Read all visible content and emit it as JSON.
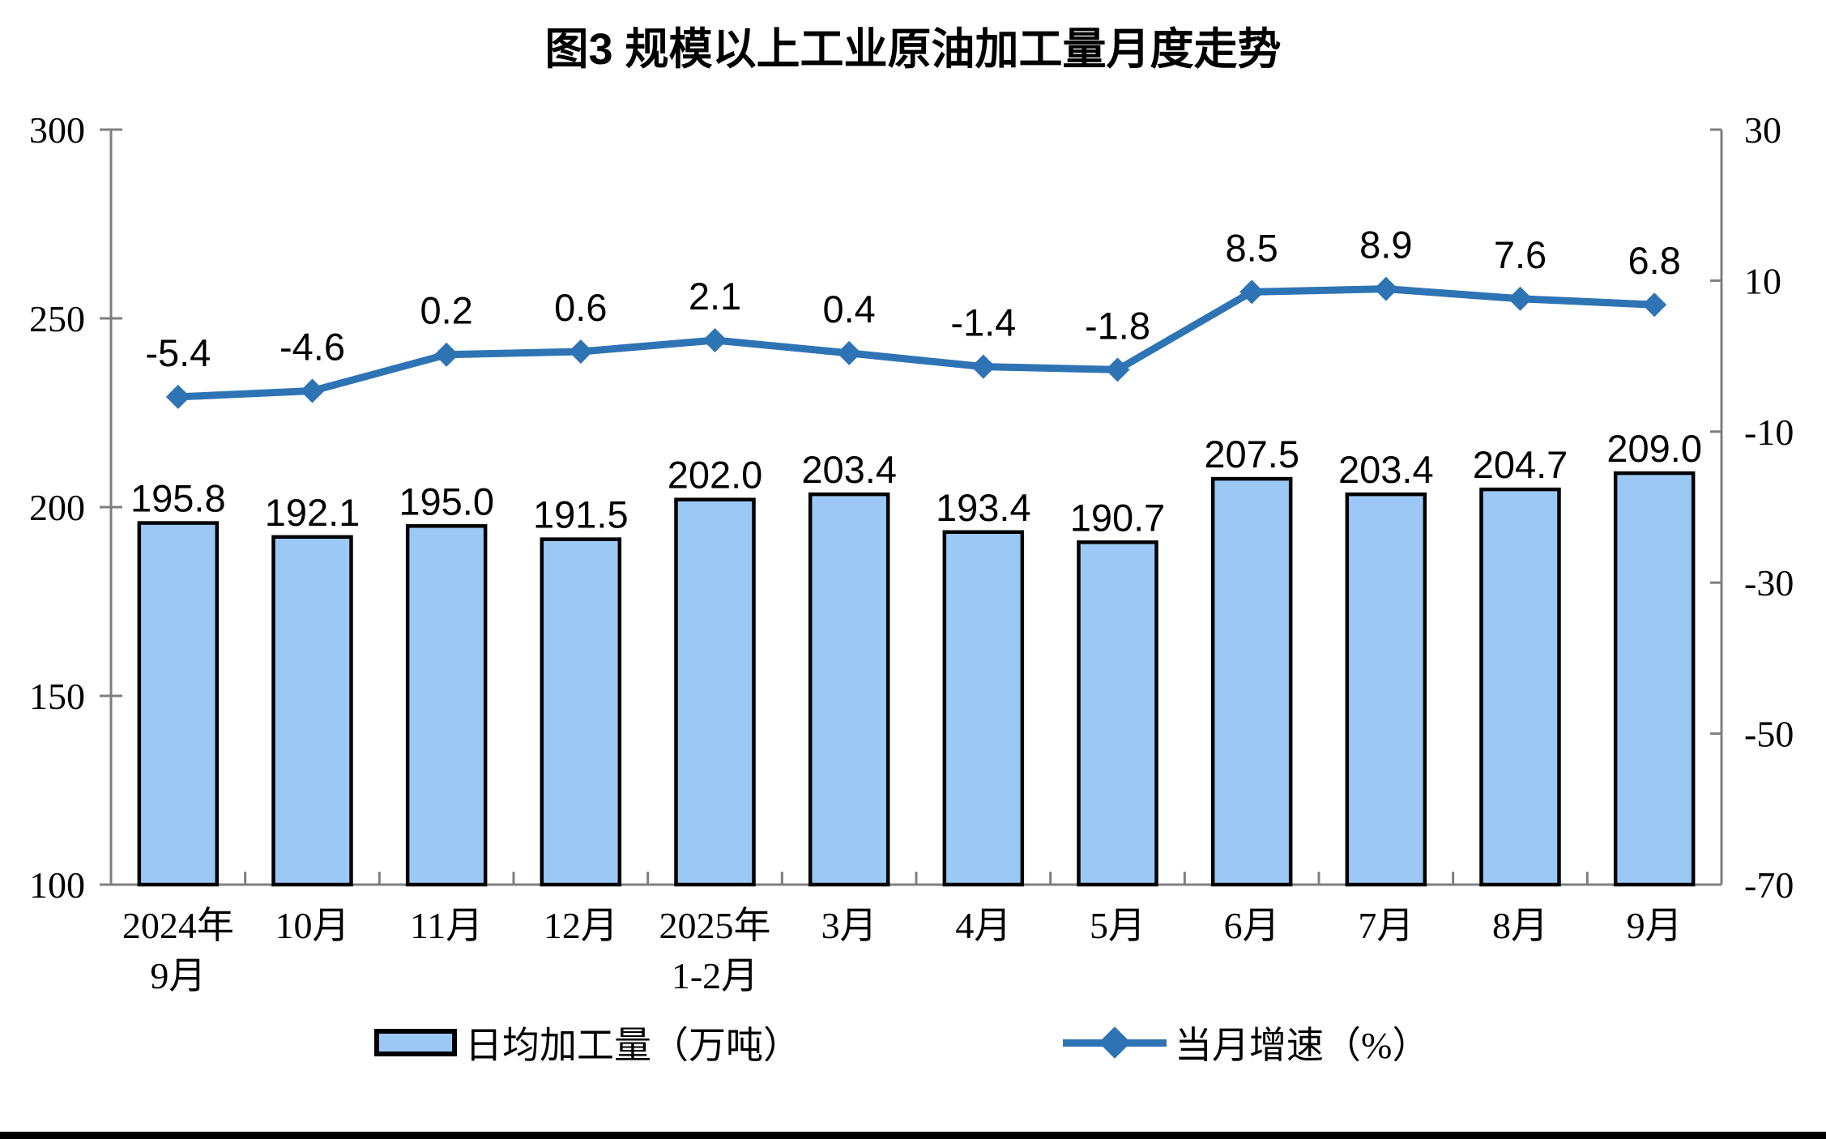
{
  "page": {
    "background": "#ffffff",
    "bottom_divider_color": "#000000"
  },
  "chart_data": {
    "type": "bar",
    "title": "图3 规模以上工业原油加工量月度走势",
    "categories": [
      [
        "2024年",
        "9月"
      ],
      [
        "10月"
      ],
      [
        "11月"
      ],
      [
        "12月"
      ],
      [
        "2025年",
        "1-2月"
      ],
      [
        "3月"
      ],
      [
        "4月"
      ],
      [
        "5月"
      ],
      [
        "6月"
      ],
      [
        "7月"
      ],
      [
        "8月"
      ],
      [
        "9月"
      ]
    ],
    "series": [
      {
        "name": "日均加工量（万吨）",
        "kind": "bar",
        "axis": "left",
        "color": "#9CC8F6",
        "border_color": "#000000",
        "values": [
          195.8,
          192.1,
          195.0,
          191.5,
          202.0,
          203.4,
          193.4,
          190.7,
          207.5,
          203.4,
          204.7,
          209.0
        ]
      },
      {
        "name": "当月增速（%）",
        "kind": "line",
        "axis": "right",
        "color": "#2E74B5",
        "marker": "diamond",
        "values": [
          -5.4,
          -4.6,
          0.2,
          0.6,
          2.1,
          0.4,
          -1.4,
          -1.8,
          8.5,
          8.9,
          7.6,
          6.8
        ]
      }
    ],
    "left_axis": {
      "min": 100,
      "max": 300,
      "ticks": [
        300,
        250,
        200,
        150,
        100
      ]
    },
    "right_axis": {
      "min": -70,
      "max": 30,
      "ticks": [
        30,
        10,
        -10,
        -30,
        -50,
        -70
      ]
    },
    "axis_color": "#7F7F7F",
    "grid": "off",
    "legend_position": "bottom",
    "data_labels": "on"
  }
}
